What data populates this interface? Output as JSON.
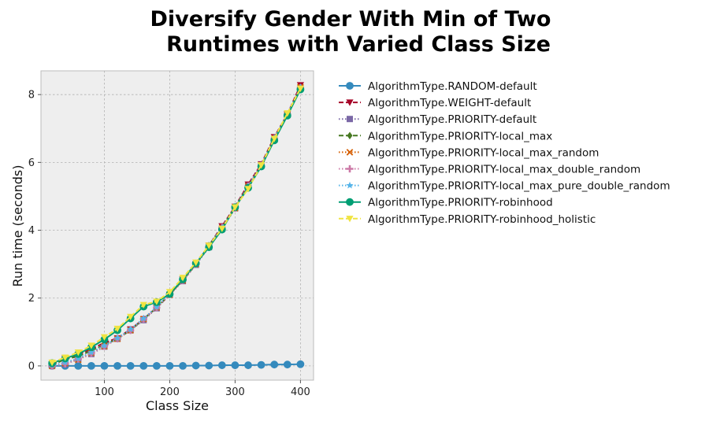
{
  "chart_data": {
    "type": "line",
    "title_lines": [
      "Diversify Gender With Min of Two",
      "Runtimes with Varied Class Size"
    ],
    "xlabel": "Class Size",
    "ylabel": "Run time (seconds)",
    "xlim": [
      3,
      420
    ],
    "ylim": [
      -0.42,
      8.7
    ],
    "xticks": [
      100,
      200,
      300,
      400
    ],
    "yticks": [
      0,
      2,
      4,
      6,
      8
    ],
    "grid": true,
    "legend_position": "outside right",
    "x": [
      20,
      40,
      60,
      80,
      100,
      120,
      140,
      160,
      180,
      200,
      220,
      240,
      260,
      280,
      300,
      320,
      340,
      360,
      380,
      400
    ],
    "series": [
      {
        "name": "AlgorithmType.RANDOM-default",
        "color": "#348ABD",
        "marker": "circle",
        "dash": "solid",
        "values": [
          0.0,
          0.0,
          0.0,
          0.0,
          0.0,
          0.0,
          0.0,
          0.0,
          0.0,
          0.0,
          0.0,
          0.01,
          0.01,
          0.02,
          0.02,
          0.02,
          0.03,
          0.04,
          0.04,
          0.05
        ]
      },
      {
        "name": "AlgorithmType.WEIGHT-default",
        "color": "#A60628",
        "marker": "triangle-down",
        "dash": "dashed",
        "values": [
          0.05,
          0.22,
          0.33,
          0.5,
          0.68,
          0.82,
          1.08,
          1.38,
          1.72,
          2.1,
          2.55,
          3.0,
          3.55,
          4.12,
          4.7,
          5.35,
          5.95,
          6.75,
          7.42,
          8.28
        ]
      },
      {
        "name": "AlgorithmType.PRIORITY-default",
        "color": "#7A68A6",
        "marker": "square",
        "dash": "dotted",
        "values": [
          0.0,
          0.05,
          0.2,
          0.35,
          0.57,
          0.8,
          1.05,
          1.35,
          1.7,
          2.1,
          2.5,
          2.98,
          3.5,
          4.05,
          4.65,
          5.3,
          5.92,
          6.68,
          7.4,
          8.2
        ]
      },
      {
        "name": "AlgorithmType.PRIORITY-local_max",
        "color": "#467821",
        "marker": "diamond",
        "dash": "dashed",
        "values": [
          0.02,
          0.2,
          0.28,
          0.45,
          0.62,
          0.8,
          1.05,
          1.38,
          1.72,
          2.12,
          2.52,
          3.0,
          3.55,
          4.08,
          4.68,
          5.3,
          5.9,
          6.72,
          7.4,
          8.2
        ]
      },
      {
        "name": "AlgorithmType.PRIORITY-local_max_random",
        "color": "#D55E00",
        "marker": "x",
        "dash": "dotted",
        "values": [
          0.0,
          0.08,
          0.18,
          0.38,
          0.58,
          0.8,
          1.05,
          1.38,
          1.72,
          2.1,
          2.52,
          3.0,
          3.52,
          4.05,
          4.65,
          5.3,
          5.9,
          6.7,
          7.4,
          8.22
        ]
      },
      {
        "name": "AlgorithmType.PRIORITY-local_max_double_random",
        "color": "#CC79A7",
        "marker": "plus",
        "dash": "dotted",
        "values": [
          0.0,
          0.06,
          0.2,
          0.37,
          0.58,
          0.8,
          1.05,
          1.38,
          1.72,
          2.12,
          2.52,
          3.0,
          3.52,
          4.08,
          4.65,
          5.3,
          5.9,
          6.7,
          7.42,
          8.2
        ]
      },
      {
        "name": "AlgorithmType.PRIORITY-local_max_pure_double_random",
        "color": "#56B4E9",
        "marker": "star",
        "dash": "dotted",
        "values": [
          0.02,
          0.1,
          0.22,
          0.4,
          0.6,
          0.82,
          1.08,
          1.4,
          1.74,
          2.12,
          2.55,
          3.02,
          3.55,
          4.08,
          4.68,
          5.3,
          5.92,
          6.72,
          7.42,
          8.22
        ]
      },
      {
        "name": "AlgorithmType.PRIORITY-robinhood",
        "color": "#009E73",
        "marker": "circle",
        "dash": "solid",
        "values": [
          0.08,
          0.22,
          0.35,
          0.55,
          0.78,
          1.05,
          1.4,
          1.75,
          1.88,
          2.12,
          2.55,
          3.02,
          3.5,
          4.02,
          4.68,
          5.25,
          5.88,
          6.65,
          7.38,
          8.15
        ]
      },
      {
        "name": "AlgorithmType.PRIORITY-robinhood_holistic",
        "color": "#F0E442",
        "marker": "triangle-down",
        "dash": "dashed",
        "values": [
          0.1,
          0.25,
          0.4,
          0.6,
          0.85,
          1.1,
          1.45,
          1.8,
          1.9,
          2.18,
          2.6,
          3.05,
          3.55,
          4.05,
          4.68,
          5.22,
          5.92,
          6.7,
          7.45,
          8.18
        ]
      }
    ]
  }
}
